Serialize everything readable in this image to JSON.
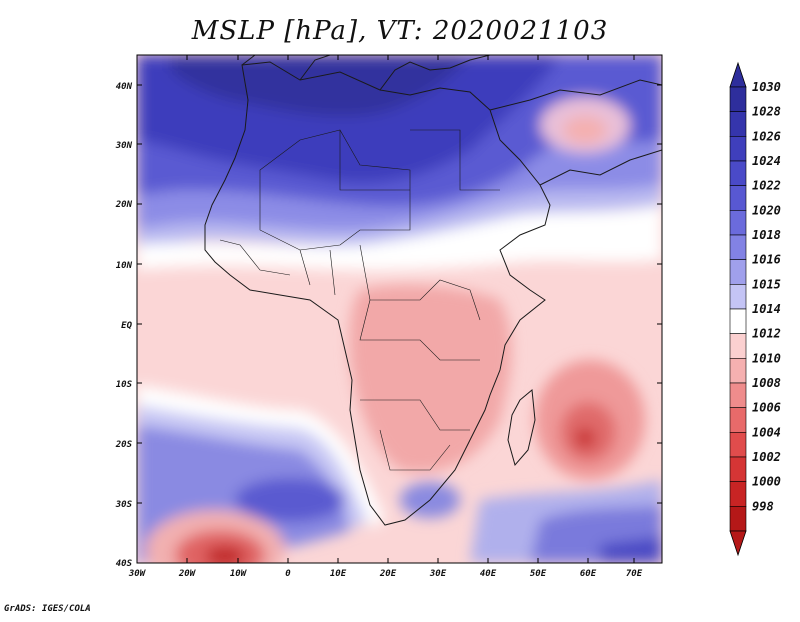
{
  "title": "MSLP [hPa], VT: 2020021103",
  "footer": "GrADS: IGES/COLA",
  "lat_labels": [
    "40N",
    "30N",
    "20N",
    "10N",
    "EQ",
    "10S",
    "20S",
    "30S",
    "40S"
  ],
  "lon_labels": [
    "30W",
    "20W",
    "10W",
    "0",
    "10E",
    "20E",
    "30E",
    "40E",
    "50E",
    "60E",
    "70E"
  ],
  "colorbar": {
    "levels": [
      "1030",
      "1028",
      "1026",
      "1024",
      "1022",
      "1020",
      "1018",
      "1016",
      "1015",
      "1014",
      "1012",
      "1010",
      "1008",
      "1006",
      "1004",
      "1002",
      "1000",
      "998"
    ],
    "colors": [
      "#2e2e9c",
      "#3535ac",
      "#3f3fbc",
      "#4a4ac8",
      "#5858d2",
      "#6b6bdc",
      "#8282e4",
      "#a0a0ec",
      "#c4c4f5",
      "#ffffff",
      "#fbd0d0",
      "#f5b0b0",
      "#ef8c8c",
      "#e86a6a",
      "#e04c4c",
      "#d53535",
      "#c82424",
      "#b51818"
    ]
  },
  "colors": {
    "strong_high": "#3a3ab8",
    "mid_high": "#6a6ad8",
    "light_high": "#b9b9f0",
    "neutral": "#ffffff",
    "light_low": "#fbd3d3",
    "mid_low": "#f2a8a8",
    "strong_low": "#c62828",
    "border": "#1a1a1a"
  }
}
